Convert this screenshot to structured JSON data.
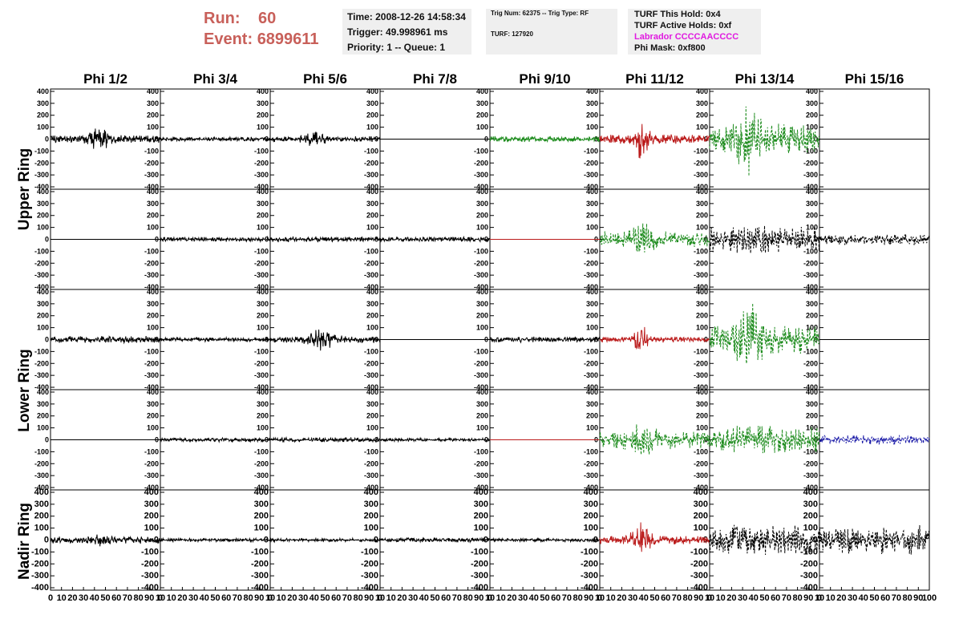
{
  "header": {
    "run_label": "Run:",
    "run_value": "60",
    "event_label": "Event:",
    "event_value": "6899611",
    "time": "Time: 2008-12-26 14:58:34",
    "trigger": "Trigger: 49.998961 ms",
    "priority": "Priority: 1 -- Queue: 1",
    "trig_num": "Trig Num: 62375 -- Trig Type: RF",
    "turf": "TURF: 127920",
    "turf_this_hold": "TURF This Hold: 0x4",
    "turf_active_holds": "TURF Active Holds: 0xf",
    "labrador": "Labrador CCCCAACCCC",
    "phi_mask": "Phi Mask: 0xf800"
  },
  "colors": {
    "run_text": "#c8605a",
    "labrador": "#e01ae0",
    "trace_black": "#000000",
    "trace_green": "#1e8c1e",
    "trace_red": "#bb1c1c",
    "trace_blue": "#1c1ca8"
  },
  "chart_data": {
    "type": "line",
    "columns": [
      "Phi 1/2",
      "Phi 3/4",
      "Phi 5/6",
      "Phi 7/8",
      "Phi 9/10",
      "Phi 11/12",
      "Phi 13/14",
      "Phi 15/16"
    ],
    "rows": [
      "Upper Ring",
      "Lower Ring",
      "Nadir Ring"
    ],
    "ylim": [
      -420,
      420
    ],
    "xlim": [
      0,
      100
    ],
    "y_ticks": [
      400,
      300,
      200,
      100,
      0,
      -100,
      -200,
      -300,
      -400
    ],
    "x_tick_labels": [
      [
        "0",
        "10",
        "20",
        "30",
        "40",
        "50",
        "60",
        "70",
        "80",
        "90",
        "10"
      ],
      [
        "0",
        "10",
        "20",
        "30",
        "40",
        "50",
        "60",
        "70",
        "80",
        "90",
        "10"
      ],
      [
        "0",
        "10",
        "20",
        "30",
        "40",
        "50",
        "60",
        "70",
        "80",
        "90",
        "10"
      ],
      [
        "0",
        "10",
        "20",
        "30",
        "40",
        "50",
        "60",
        "70",
        "80",
        "90",
        "10"
      ],
      [
        "0",
        "10",
        "20",
        "30",
        "40",
        "50",
        "60",
        "70",
        "80",
        "90",
        "10"
      ],
      [
        "0",
        "10",
        "20",
        "30",
        "40",
        "50",
        "60",
        "70",
        "80",
        "90",
        "10"
      ],
      [
        "0",
        "10",
        "20",
        "30",
        "40",
        "50",
        "60",
        "70",
        "80",
        "90",
        "10"
      ],
      [
        "0",
        "10",
        "20",
        "30",
        "40",
        "50",
        "60",
        "70",
        "80",
        "90",
        "100"
      ]
    ],
    "series": [
      {
        "row": 0,
        "col": 0,
        "color": "black",
        "dashed": false,
        "amp": 35,
        "burst": 80,
        "center": 45,
        "width": 8
      },
      {
        "row": 0,
        "col": 1,
        "color": "black",
        "dashed": false,
        "amp": 18,
        "burst": 0,
        "center": 50,
        "width": 10
      },
      {
        "row": 0,
        "col": 2,
        "color": "black",
        "dashed": false,
        "amp": 25,
        "burst": 40,
        "center": 40,
        "width": 10
      },
      {
        "row": 0,
        "col": 3,
        "color": "black",
        "dashed": false,
        "amp": 0,
        "burst": 0,
        "center": 50,
        "width": 10
      },
      {
        "row": 0,
        "col": 4,
        "color": "green",
        "dashed": false,
        "amp": 25,
        "burst": 0,
        "center": 50,
        "width": 10
      },
      {
        "row": 0,
        "col": 5,
        "color": "red",
        "dashed": false,
        "amp": 40,
        "burst": 160,
        "center": 38,
        "width": 6
      },
      {
        "row": 0,
        "col": 6,
        "color": "green",
        "dashed": true,
        "amp": 130,
        "burst": 250,
        "center": 37,
        "width": 10
      },
      {
        "row": 0,
        "col": 7,
        "color": "black",
        "dashed": false,
        "amp": 0,
        "burst": 0,
        "center": 50,
        "width": 10
      },
      {
        "row": 1,
        "col": 0,
        "color": "black",
        "dashed": false,
        "amp": 0,
        "burst": 0,
        "center": 50,
        "width": 10
      },
      {
        "row": 1,
        "col": 1,
        "color": "black",
        "dashed": false,
        "amp": 20,
        "burst": 0,
        "center": 50,
        "width": 10
      },
      {
        "row": 1,
        "col": 2,
        "color": "black",
        "dashed": false,
        "amp": 25,
        "burst": 0,
        "center": 50,
        "width": 10
      },
      {
        "row": 1,
        "col": 3,
        "color": "black",
        "dashed": false,
        "amp": 22,
        "burst": 0,
        "center": 50,
        "width": 10
      },
      {
        "row": 1,
        "col": 4,
        "color": "red",
        "dashed": false,
        "amp": 0,
        "burst": 0,
        "center": 50,
        "width": 10
      },
      {
        "row": 1,
        "col": 5,
        "color": "green",
        "dashed": true,
        "amp": 70,
        "burst": 100,
        "center": 40,
        "width": 10
      },
      {
        "row": 1,
        "col": 6,
        "color": "black",
        "dashed": true,
        "amp": 110,
        "burst": 40,
        "center": 40,
        "width": 15
      },
      {
        "row": 1,
        "col": 7,
        "color": "black",
        "dashed": true,
        "amp": 50,
        "burst": 0,
        "center": 50,
        "width": 10
      },
      {
        "row": 2,
        "col": 0,
        "color": "black",
        "dashed": false,
        "amp": 30,
        "burst": 0,
        "center": 50,
        "width": 10
      },
      {
        "row": 2,
        "col": 1,
        "color": "black",
        "dashed": false,
        "amp": 20,
        "burst": 0,
        "center": 50,
        "width": 10
      },
      {
        "row": 2,
        "col": 2,
        "color": "black",
        "dashed": false,
        "amp": 30,
        "burst": 70,
        "center": 47,
        "width": 12
      },
      {
        "row": 2,
        "col": 3,
        "color": "black",
        "dashed": false,
        "amp": 0,
        "burst": 0,
        "center": 50,
        "width": 10
      },
      {
        "row": 2,
        "col": 4,
        "color": "black",
        "dashed": false,
        "amp": 25,
        "burst": 0,
        "center": 50,
        "width": 10
      },
      {
        "row": 2,
        "col": 5,
        "color": "red",
        "dashed": false,
        "amp": 25,
        "burst": 110,
        "center": 38,
        "width": 6
      },
      {
        "row": 2,
        "col": 6,
        "color": "green",
        "dashed": true,
        "amp": 120,
        "burst": 200,
        "center": 38,
        "width": 12
      },
      {
        "row": 2,
        "col": 7,
        "color": "black",
        "dashed": false,
        "amp": 0,
        "burst": 0,
        "center": 50,
        "width": 10
      },
      {
        "row": 3,
        "col": 0,
        "color": "black",
        "dashed": false,
        "amp": 0,
        "burst": 0,
        "center": 50,
        "width": 10
      },
      {
        "row": 3,
        "col": 1,
        "color": "black",
        "dashed": false,
        "amp": 18,
        "burst": 0,
        "center": 50,
        "width": 10
      },
      {
        "row": 3,
        "col": 2,
        "color": "black",
        "dashed": false,
        "amp": 20,
        "burst": 0,
        "center": 50,
        "width": 10
      },
      {
        "row": 3,
        "col": 3,
        "color": "black",
        "dashed": false,
        "amp": 15,
        "burst": 0,
        "center": 50,
        "width": 10
      },
      {
        "row": 3,
        "col": 4,
        "color": "red",
        "dashed": false,
        "amp": 0,
        "burst": 0,
        "center": 50,
        "width": 10
      },
      {
        "row": 3,
        "col": 5,
        "color": "green",
        "dashed": true,
        "amp": 80,
        "burst": 90,
        "center": 38,
        "width": 10
      },
      {
        "row": 3,
        "col": 6,
        "color": "green",
        "dashed": true,
        "amp": 110,
        "burst": 40,
        "center": 40,
        "width": 15
      },
      {
        "row": 3,
        "col": 7,
        "color": "blue",
        "dashed": true,
        "amp": 40,
        "burst": 0,
        "center": 50,
        "width": 10
      },
      {
        "row": 4,
        "col": 0,
        "color": "black",
        "dashed": false,
        "amp": 30,
        "burst": 40,
        "center": 45,
        "width": 8
      },
      {
        "row": 4,
        "col": 1,
        "color": "black",
        "dashed": false,
        "amp": 15,
        "burst": 0,
        "center": 50,
        "width": 10
      },
      {
        "row": 4,
        "col": 2,
        "color": "black",
        "dashed": false,
        "amp": 15,
        "burst": 0,
        "center": 50,
        "width": 10
      },
      {
        "row": 4,
        "col": 3,
        "color": "black",
        "dashed": false,
        "amp": 20,
        "burst": 0,
        "center": 50,
        "width": 10
      },
      {
        "row": 4,
        "col": 4,
        "color": "black",
        "dashed": false,
        "amp": 15,
        "burst": 0,
        "center": 50,
        "width": 10
      },
      {
        "row": 4,
        "col": 5,
        "color": "red",
        "dashed": false,
        "amp": 40,
        "burst": 130,
        "center": 38,
        "width": 8
      },
      {
        "row": 4,
        "col": 6,
        "color": "black",
        "dashed": true,
        "amp": 130,
        "burst": 0,
        "center": 50,
        "width": 10
      },
      {
        "row": 4,
        "col": 7,
        "color": "black",
        "dashed": true,
        "amp": 130,
        "burst": 0,
        "center": 50,
        "width": 10
      }
    ]
  }
}
